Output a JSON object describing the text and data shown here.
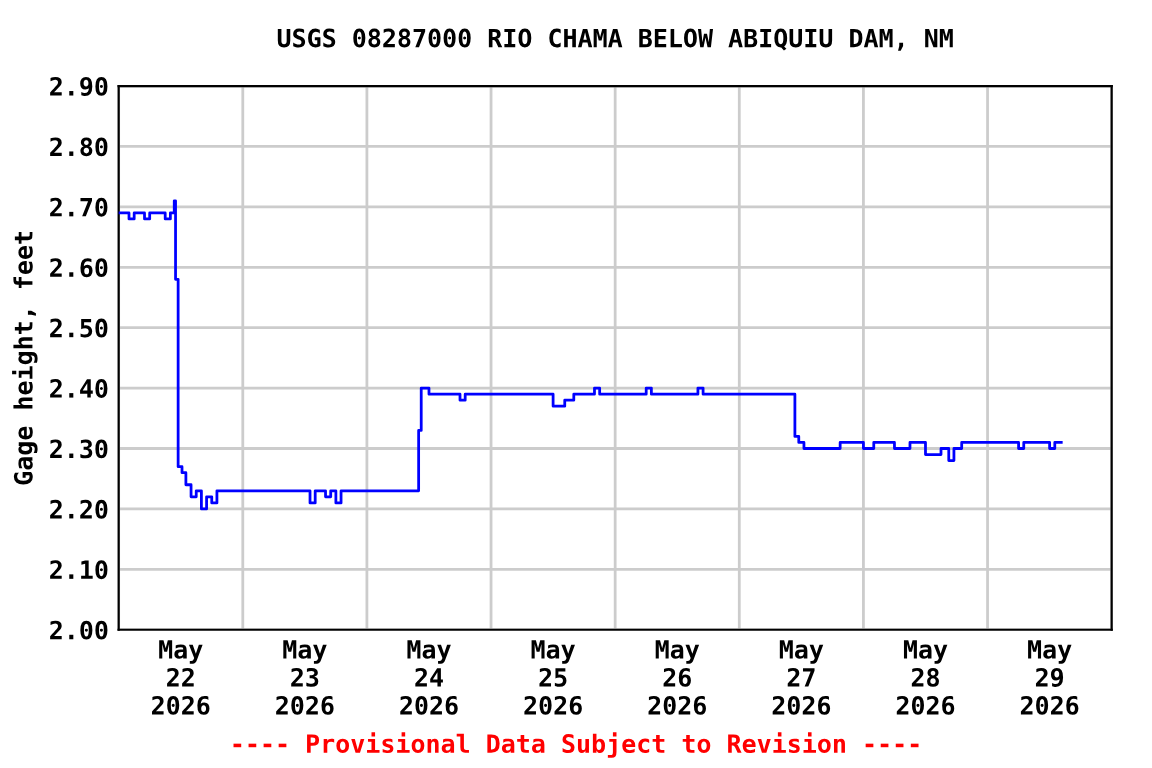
{
  "chart_data": {
    "type": "step",
    "title": "USGS 08287000 RIO CHAMA BELOW ABIQUIU DAM, NM",
    "ylabel": "Gage height, feet",
    "annotations": [
      "---- Provisional Data Subject to Revision ----"
    ],
    "grid": true,
    "legend": false,
    "marker": "none",
    "line_style": "solid",
    "xlim": [
      "2026-05-22T00:00",
      "2026-05-30T00:00"
    ],
    "xticks": [
      {
        "value": "2026-05-22T00:00",
        "label": null
      },
      {
        "value": "2026-05-22T12:00",
        "label": "May\n22\n2026"
      },
      {
        "value": "2026-05-23T00:00",
        "label": null
      },
      {
        "value": "2026-05-23T12:00",
        "label": "May\n23\n2026"
      },
      {
        "value": "2026-05-24T00:00",
        "label": null
      },
      {
        "value": "2026-05-24T12:00",
        "label": "May\n24\n2026"
      },
      {
        "value": "2026-05-25T00:00",
        "label": null
      },
      {
        "value": "2026-05-25T12:00",
        "label": "May\n25\n2026"
      },
      {
        "value": "2026-05-26T00:00",
        "label": null
      },
      {
        "value": "2026-05-26T12:00",
        "label": "May\n26\n2026"
      },
      {
        "value": "2026-05-27T00:00",
        "label": null
      },
      {
        "value": "2026-05-27T12:00",
        "label": "May\n27\n2026"
      },
      {
        "value": "2026-05-28T00:00",
        "label": null
      },
      {
        "value": "2026-05-28T12:00",
        "label": "May\n28\n2026"
      },
      {
        "value": "2026-05-29T00:00",
        "label": null
      },
      {
        "value": "2026-05-29T12:00",
        "label": "May\n29\n2026"
      },
      {
        "value": "2026-05-30T00:00",
        "label": null
      }
    ],
    "ylim": [
      2.0,
      2.9
    ],
    "yticks": [
      {
        "value": 2.0,
        "label": "2.00"
      },
      {
        "value": 2.1,
        "label": "2.10"
      },
      {
        "value": 2.2,
        "label": "2.20"
      },
      {
        "value": 2.3,
        "label": "2.30"
      },
      {
        "value": 2.4,
        "label": "2.40"
      },
      {
        "value": 2.5,
        "label": "2.50"
      },
      {
        "value": 2.6,
        "label": "2.60"
      },
      {
        "value": 2.7,
        "label": "2.70"
      },
      {
        "value": 2.8,
        "label": "2.80"
      },
      {
        "value": 2.9,
        "label": "2.90"
      }
    ],
    "series": [
      {
        "color": "#0000ff",
        "x": [
          "2026-05-22T00:00",
          "2026-05-22T02:00",
          "2026-05-22T03:00",
          "2026-05-22T05:00",
          "2026-05-22T06:00",
          "2026-05-22T08:00",
          "2026-05-22T09:00",
          "2026-05-22T10:00",
          "2026-05-22T10:45",
          "2026-05-22T11:00",
          "2026-05-22T11:30",
          "2026-05-22T12:15",
          "2026-05-22T13:00",
          "2026-05-22T14:00",
          "2026-05-22T15:00",
          "2026-05-22T16:00",
          "2026-05-22T17:00",
          "2026-05-22T18:00",
          "2026-05-22T19:00",
          "2026-05-23T13:00",
          "2026-05-23T14:00",
          "2026-05-23T16:00",
          "2026-05-23T17:00",
          "2026-05-23T18:00",
          "2026-05-23T19:00",
          "2026-05-24T10:00",
          "2026-05-24T10:30",
          "2026-05-24T12:00",
          "2026-05-24T18:00",
          "2026-05-24T19:00",
          "2026-05-25T12:00",
          "2026-05-25T14:15",
          "2026-05-25T16:00",
          "2026-05-25T20:00",
          "2026-05-25T21:00",
          "2026-05-26T06:00",
          "2026-05-26T07:00",
          "2026-05-26T16:00",
          "2026-05-26T17:00",
          "2026-05-27T10:45",
          "2026-05-27T11:30",
          "2026-05-27T12:30",
          "2026-05-27T19:00",
          "2026-05-27T19:30",
          "2026-05-28T00:00",
          "2026-05-28T02:00",
          "2026-05-28T06:00",
          "2026-05-28T09:00",
          "2026-05-28T12:00",
          "2026-05-28T15:00",
          "2026-05-28T16:30",
          "2026-05-28T17:30",
          "2026-05-28T19:00",
          "2026-05-29T06:00",
          "2026-05-29T07:00",
          "2026-05-29T12:00",
          "2026-05-29T13:00",
          "2026-05-29T14:15"
        ],
        "values": [
          2.69,
          2.68,
          2.69,
          2.68,
          2.69,
          2.69,
          2.68,
          2.69,
          2.71,
          2.58,
          2.27,
          2.26,
          2.24,
          2.22,
          2.23,
          2.2,
          2.22,
          2.21,
          2.23,
          2.21,
          2.23,
          2.22,
          2.23,
          2.21,
          2.23,
          2.33,
          2.4,
          2.39,
          2.38,
          2.39,
          2.37,
          2.38,
          2.39,
          2.4,
          2.39,
          2.4,
          2.39,
          2.4,
          2.39,
          2.32,
          2.31,
          2.3,
          2.3,
          2.31,
          2.3,
          2.31,
          2.3,
          2.31,
          2.29,
          2.3,
          2.28,
          2.3,
          2.31,
          2.3,
          2.31,
          2.3,
          2.31,
          2.31
        ]
      }
    ]
  }
}
